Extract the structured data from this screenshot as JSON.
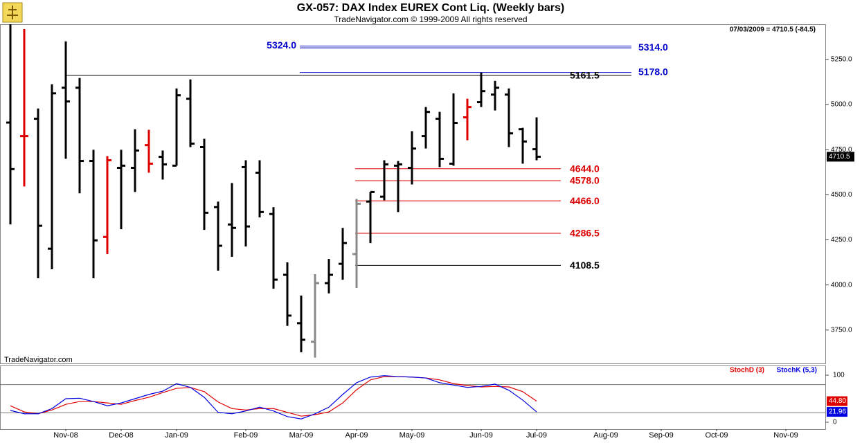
{
  "chart_data": [
    {
      "type": "ohlc",
      "title": "GX-057:  DAX Index EUREX Cont Liq.  (Weekly bars)",
      "subtitle": "TradeNavigator.com © 1999-2009 All rights reserved",
      "watermark": "TradeNavigator.com",
      "status": "07/03/2009 = 4710.5 (-84.5)",
      "ylim": [
        3565,
        5445
      ],
      "yticks": [
        {
          "value": 3750,
          "label": "3750.0"
        },
        {
          "value": 4000,
          "label": "4000.0"
        },
        {
          "value": 4250,
          "label": "4250.0"
        },
        {
          "value": 4500,
          "label": "4500.0"
        },
        {
          "value": 4750,
          "label": "4750.0"
        },
        {
          "value": 5000,
          "label": "5000.0"
        },
        {
          "value": 5250,
          "label": "5250.0"
        }
      ],
      "open": [
        4900,
        4825,
        4921,
        4201,
        5093,
        5093,
        4687,
        4266,
        4649,
        4649,
        4775,
        4710,
        4661,
        5032,
        4764,
        4431,
        4335,
        4653,
        4622,
        4393,
        4056,
        3788,
        3685,
        4010,
        4117,
        4171,
        4462,
        4489,
        4661,
        4649,
        4825,
        4921,
        4672,
        4929,
        5013,
        5055,
        5055,
        4863,
        4752,
        null,
        null,
        null,
        null,
        null,
        null,
        null,
        null,
        null,
        null,
        null,
        null,
        null,
        null,
        null,
        null,
        null,
        null,
        null,
        null
      ],
      "high": [
        5445,
        5418,
        4978,
        5112,
        5350,
        5147,
        4749,
        4714,
        4749,
        4863,
        4860,
        4745,
        5089,
        5139,
        4810,
        4462,
        4565,
        4691,
        4691,
        4431,
        4125,
        3941,
        4060,
        4144,
        4316,
        4477,
        4515,
        4691,
        4687,
        4852,
        4986,
        4959,
        5062,
        5032,
        5177,
        5131,
        5089,
        4871,
        4929,
        null,
        null,
        null,
        null,
        null,
        null,
        null,
        null,
        null,
        null,
        null,
        null,
        null,
        null,
        null,
        null,
        null,
        null,
        null,
        null
      ],
      "low": [
        4335,
        4546,
        4037,
        4087,
        4699,
        4508,
        4037,
        4171,
        4309,
        4515,
        4622,
        4584,
        4661,
        4764,
        4305,
        4079,
        4156,
        4213,
        4374,
        3979,
        3773,
        3627,
        3597,
        3953,
        4029,
        3983,
        4232,
        4469,
        4404,
        4557,
        4756,
        4653,
        4661,
        4802,
        4986,
        4967,
        4764,
        4672,
        4691,
        null,
        null,
        null,
        null,
        null,
        null,
        null,
        null,
        null,
        null,
        null,
        null,
        null,
        null,
        null,
        null,
        null,
        null,
        null,
        null
      ],
      "close": [
        4642,
        4825,
        4328,
        5062,
        5017,
        4687,
        4247,
        4691,
        4661,
        4745,
        4672,
        4668,
        5051,
        4783,
        4400,
        4217,
        4316,
        4324,
        4404,
        4029,
        3830,
        3696,
        4010,
        4056,
        4232,
        4450,
        4515,
        4668,
        4668,
        4756,
        4959,
        4699,
        4898,
        4986,
        5074,
        5093,
        4840,
        4795,
        4710.5,
        null,
        null,
        null,
        null,
        null,
        null,
        null,
        null,
        null,
        null,
        null,
        null,
        null,
        null,
        null,
        null,
        null,
        null,
        null,
        null
      ],
      "colors": [
        "#000000",
        "#e00000",
        "#000000",
        "#000000",
        "#000000",
        "#000000",
        "#000000",
        "#e00000",
        "#000000",
        "#000000",
        "#e00000",
        "#000000",
        "#000000",
        "#000000",
        "#000000",
        "#000000",
        "#000000",
        "#000000",
        "#000000",
        "#000000",
        "#000000",
        "#000000",
        "#888888",
        "#000000",
        "#000000",
        "#888888",
        "#000000",
        "#000000",
        "#000000",
        "#000000",
        "#000000",
        "#000000",
        "#000000",
        "#e00000",
        "#000000",
        "#000000",
        "#000000",
        "#000000",
        "#000000",
        null,
        null,
        null,
        null,
        null,
        null,
        null,
        null,
        null,
        null,
        null,
        null,
        null,
        null,
        null,
        null,
        null,
        null,
        null,
        null
      ],
      "levels": [
        {
          "value": 5324,
          "label": "5324.0",
          "color": "#0000cc"
        },
        {
          "value": 5314,
          "label": "5314.0",
          "color": "#0000cc"
        },
        {
          "value": 5178,
          "label": "5178.0",
          "color": "#0000cc"
        },
        {
          "value": 5161.5,
          "label": "5161.5",
          "color": "#000000"
        },
        {
          "value": 4644,
          "label": "4644.0",
          "color": "#dd0000"
        },
        {
          "value": 4578,
          "label": "4578.0",
          "color": "#dd0000"
        },
        {
          "value": 4466,
          "label": "4466.0",
          "color": "#dd0000"
        },
        {
          "value": 4286.5,
          "label": "4286.5",
          "color": "#dd0000"
        },
        {
          "value": 4108.5,
          "label": "4108.5",
          "color": "#000000"
        }
      ]
    },
    {
      "type": "line",
      "categories": [
        null,
        null,
        null,
        null,
        "Nov-08",
        null,
        null,
        null,
        "Dec-08",
        null,
        null,
        null,
        "Jan-09",
        null,
        null,
        null,
        null,
        "Feb-09",
        null,
        null,
        null,
        "Mar-09",
        null,
        null,
        null,
        "Apr-09",
        null,
        null,
        null,
        "May-09",
        null,
        null,
        null,
        null,
        "Jun-09",
        null,
        null,
        null,
        "Jul-09",
        null,
        null,
        null,
        null,
        "Aug-09",
        null,
        null,
        null,
        "Sep-09",
        null,
        null,
        null,
        "Oct-09",
        null,
        null,
        null,
        null,
        "Nov-09",
        null,
        null
      ],
      "ylim": [
        -14.7,
        120.6
      ],
      "yticks": [
        0,
        100
      ],
      "hlines": [
        20,
        80
      ],
      "series": [
        {
          "name": "StochD (3)",
          "color": "#e00000",
          "values": [
            35,
            22,
            18,
            26,
            38,
            44,
            44,
            41,
            38,
            46,
            53,
            63,
            72,
            74,
            65,
            43,
            29,
            26,
            29,
            29,
            21,
            13,
            16,
            22,
            41,
            69,
            90,
            97,
            97,
            96,
            94,
            90,
            82,
            78,
            75,
            76,
            75,
            65,
            44.8,
            null,
            null,
            null,
            null,
            null,
            null,
            null,
            null,
            null,
            null,
            null,
            null,
            null,
            null,
            null,
            null,
            null,
            null,
            null,
            null
          ],
          "value_labels": [
            null,
            null,
            null,
            null,
            null,
            null,
            null,
            null,
            null,
            null,
            null,
            null,
            null,
            null,
            null,
            null,
            null,
            null,
            null,
            null,
            null,
            null,
            null,
            null,
            null,
            null,
            null,
            null,
            null,
            null,
            null,
            null,
            null,
            null,
            null,
            null,
            null,
            null,
            "44.80",
            null,
            null,
            null,
            null,
            null,
            null,
            null,
            null,
            null,
            null,
            null,
            null,
            null,
            null,
            null,
            null,
            null,
            null,
            null,
            null
          ]
        },
        {
          "name": "StochK (5,3)",
          "color": "#0000e0",
          "values": [
            25,
            18,
            18,
            29,
            50,
            51,
            44,
            35,
            41,
            50,
            59,
            66,
            82,
            74,
            53,
            21,
            18,
            24,
            32,
            24,
            12,
            7,
            18,
            32,
            59,
            84,
            96,
            99,
            97,
            96,
            94,
            84,
            79,
            74,
            76,
            81,
            68,
            47,
            21.96,
            null,
            null,
            null,
            null,
            null,
            null,
            null,
            null,
            null,
            null,
            null,
            null,
            null,
            null,
            null,
            null,
            null,
            null,
            null,
            null
          ],
          "value_labels": [
            null,
            null,
            null,
            null,
            null,
            null,
            null,
            null,
            null,
            null,
            null,
            null,
            null,
            null,
            null,
            null,
            null,
            null,
            null,
            null,
            null,
            null,
            null,
            null,
            null,
            null,
            null,
            null,
            null,
            null,
            null,
            null,
            null,
            null,
            null,
            null,
            null,
            null,
            "21.96",
            null,
            null,
            null,
            null,
            null,
            null,
            null,
            null,
            null,
            null,
            null,
            null,
            null,
            null,
            null,
            null,
            null,
            null,
            null,
            null
          ]
        }
      ]
    }
  ]
}
